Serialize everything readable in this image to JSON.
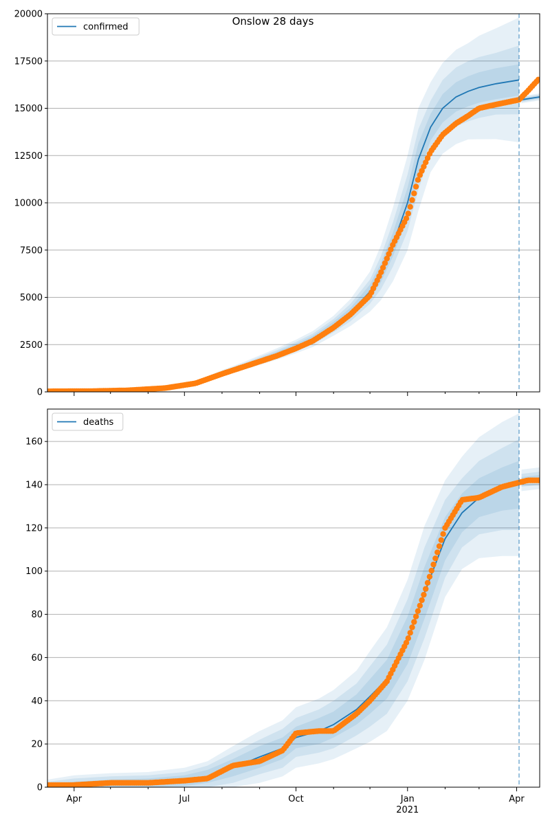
{
  "figure": {
    "title": "Onslow 28 days"
  },
  "colors": {
    "model": "#1f77b4",
    "observed": "#ff7f0e",
    "band": "#1f77b4",
    "grid": "#b0b0b0",
    "forecast_line": "#1f77b4"
  },
  "x_axis": {
    "start": "2020-03-10",
    "end": "2021-04-20",
    "major_ticks": [
      {
        "date": "2020-04-01",
        "label": "Apr"
      },
      {
        "date": "2020-07-01",
        "label": "Jul"
      },
      {
        "date": "2020-10-01",
        "label": "Oct"
      },
      {
        "date": "2021-01-01",
        "label": "Jan",
        "sublabel": "2021"
      },
      {
        "date": "2021-04-01",
        "label": "Apr"
      }
    ],
    "minor_ticks": [
      "2020-05-01",
      "2020-06-01",
      "2020-08-01",
      "2020-09-01",
      "2020-11-01",
      "2020-12-01",
      "2021-02-01",
      "2021-03-01"
    ],
    "forecast_start": "2021-04-03"
  },
  "chart_data": [
    {
      "type": "line",
      "legend": {
        "label": "confirmed",
        "position": "upper-left"
      },
      "ylim": [
        0,
        20000
      ],
      "yticks": [
        0,
        2500,
        5000,
        7500,
        10000,
        12500,
        15000,
        17500,
        20000
      ],
      "grid": "y",
      "model": {
        "name": "confirmed",
        "x": [
          "2020-03-10",
          "2020-04-15",
          "2020-05-15",
          "2020-06-15",
          "2020-07-10",
          "2020-08-01",
          "2020-08-20",
          "2020-09-15",
          "2020-10-01",
          "2020-10-15",
          "2020-11-01",
          "2020-11-15",
          "2020-12-01",
          "2020-12-10",
          "2020-12-20",
          "2021-01-01",
          "2021-01-10",
          "2021-01-20",
          "2021-01-30",
          "2021-02-10",
          "2021-02-20",
          "2021-03-01",
          "2021-03-15",
          "2021-04-03",
          "2021-04-05",
          "2021-04-20"
        ],
        "values": [
          30,
          40,
          80,
          200,
          500,
          1000,
          1400,
          2000,
          2400,
          2800,
          3500,
          4200,
          5300,
          6300,
          7800,
          10000,
          12300,
          14000,
          15000,
          15600,
          15900,
          16100,
          16300,
          16500,
          15450,
          15600
        ],
        "band_halfwidth_frac": [
          [
            0.03,
            0.06,
            0.09
          ],
          [
            0.03,
            0.06,
            0.09
          ],
          [
            0.05,
            0.09,
            0.13
          ],
          [
            0.06,
            0.1,
            0.15
          ],
          [
            0.06,
            0.1,
            0.15
          ],
          [
            0.06,
            0.1,
            0.15
          ],
          [
            0.06,
            0.1,
            0.15
          ],
          [
            0.06,
            0.1,
            0.15
          ],
          [
            0.06,
            0.1,
            0.15
          ],
          [
            0.06,
            0.1,
            0.15
          ],
          [
            0.06,
            0.1,
            0.15
          ],
          [
            0.06,
            0.11,
            0.17
          ],
          [
            0.07,
            0.12,
            0.2
          ],
          [
            0.08,
            0.14,
            0.23
          ],
          [
            0.08,
            0.15,
            0.25
          ],
          [
            0.08,
            0.15,
            0.25
          ],
          [
            0.07,
            0.13,
            0.22
          ],
          [
            0.05,
            0.1,
            0.17
          ],
          [
            0.05,
            0.1,
            0.16
          ],
          [
            0.05,
            0.1,
            0.16
          ],
          [
            0.05,
            0.1,
            0.16
          ],
          [
            0.05,
            0.1,
            0.17
          ],
          [
            0.05,
            0.1,
            0.18
          ],
          [
            0.05,
            0.11,
            0.2
          ],
          [
            0.005,
            0.008,
            0.012
          ],
          [
            0.005,
            0.008,
            0.012
          ]
        ]
      },
      "observed": {
        "name": "observed",
        "x": [
          "2020-03-10",
          "2020-04-15",
          "2020-05-15",
          "2020-06-15",
          "2020-07-10",
          "2020-08-01",
          "2020-08-20",
          "2020-09-15",
          "2020-10-01",
          "2020-10-15",
          "2020-11-01",
          "2020-11-15",
          "2020-12-01",
          "2020-12-10",
          "2020-12-20",
          "2021-01-01",
          "2021-01-10",
          "2021-01-20",
          "2021-01-30",
          "2021-02-10",
          "2021-02-20",
          "2021-03-01",
          "2021-03-15",
          "2021-04-03",
          "2021-04-10",
          "2021-04-20"
        ],
        "values": [
          30,
          40,
          80,
          200,
          450,
          950,
          1350,
          1900,
          2300,
          2700,
          3400,
          4100,
          5100,
          6300,
          7800,
          9300,
          11300,
          12700,
          13600,
          14200,
          14600,
          15000,
          15200,
          15450,
          15900,
          16600
        ]
      }
    },
    {
      "type": "line",
      "legend": {
        "label": "deaths",
        "position": "upper-left"
      },
      "ylim": [
        0,
        175
      ],
      "yticks": [
        0,
        20,
        40,
        60,
        80,
        100,
        120,
        140,
        160
      ],
      "grid": "y",
      "model": {
        "name": "deaths",
        "x": [
          "2020-03-10",
          "2020-04-01",
          "2020-05-01",
          "2020-06-01",
          "2020-07-01",
          "2020-07-20",
          "2020-08-10",
          "2020-09-01",
          "2020-09-20",
          "2020-10-01",
          "2020-10-20",
          "2020-11-01",
          "2020-11-20",
          "2020-12-01",
          "2020-12-15",
          "2021-01-01",
          "2021-01-15",
          "2021-02-01",
          "2021-02-15",
          "2021-03-01",
          "2021-03-20",
          "2021-04-03",
          "2021-04-05",
          "2021-04-20"
        ],
        "values": [
          0.5,
          1,
          1.5,
          2,
          3,
          5,
          9,
          14,
          18,
          23,
          26,
          29,
          36,
          42,
          50,
          68,
          90,
          115,
          127,
          134,
          138,
          140,
          142,
          143
        ],
        "band_halfwidth": [
          [
            1,
            2,
            3
          ],
          [
            1.5,
            3,
            4.5
          ],
          [
            2,
            3.5,
            5
          ],
          [
            2,
            3.5,
            5
          ],
          [
            2.5,
            4,
            6
          ],
          [
            3,
            5,
            7
          ],
          [
            4,
            7,
            10
          ],
          [
            5,
            8,
            12
          ],
          [
            5,
            9,
            13
          ],
          [
            5,
            9,
            14
          ],
          [
            6,
            10,
            15
          ],
          [
            6,
            11,
            16
          ],
          [
            7,
            12,
            18
          ],
          [
            8,
            14,
            21
          ],
          [
            9,
            16,
            24
          ],
          [
            11,
            19,
            28
          ],
          [
            12,
            21,
            31
          ],
          [
            10,
            18,
            27
          ],
          [
            9,
            16,
            26
          ],
          [
            9,
            17,
            28
          ],
          [
            10,
            19,
            31
          ],
          [
            11,
            21,
            33
          ],
          [
            1.5,
            3,
            5
          ],
          [
            1.5,
            3,
            5
          ]
        ]
      },
      "observed": {
        "name": "observed",
        "x": [
          "2020-03-10",
          "2020-04-01",
          "2020-05-01",
          "2020-06-01",
          "2020-07-01",
          "2020-07-20",
          "2020-08-10",
          "2020-09-01",
          "2020-09-20",
          "2020-10-01",
          "2020-10-20",
          "2020-11-01",
          "2020-11-20",
          "2020-12-01",
          "2020-12-15",
          "2021-01-01",
          "2021-01-15",
          "2021-02-01",
          "2021-02-15",
          "2021-03-01",
          "2021-03-20",
          "2021-04-03",
          "2021-04-10",
          "2021-04-20"
        ],
        "values": [
          1,
          1,
          2,
          2,
          3,
          4,
          10,
          12,
          17,
          25,
          26,
          26,
          34,
          40,
          49,
          68,
          90,
          120,
          133,
          134,
          139,
          141,
          142,
          142
        ]
      }
    }
  ]
}
